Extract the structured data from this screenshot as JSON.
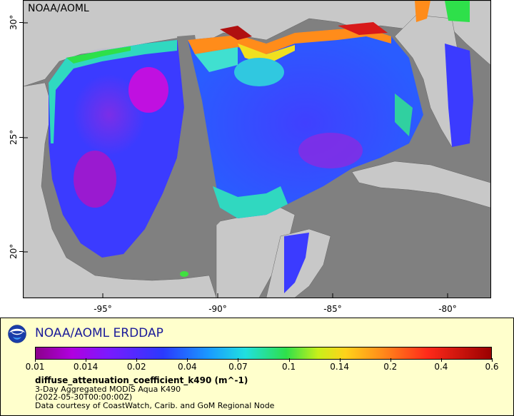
{
  "map": {
    "title": "NOAA/AOML",
    "lat_labels": [
      "30°",
      "25°",
      "20°"
    ],
    "lon_labels": [
      "-95°",
      "-90°",
      "-85°",
      "-80°"
    ],
    "land_color": "#c8c8c8",
    "nodata_color": "#808080"
  },
  "legend": {
    "header": "NOAA/AOML ERDDAP",
    "colorbar_labels": [
      "0.01",
      "0.014",
      "0.02",
      "0.04",
      "0.07",
      "0.1",
      "0.14",
      "0.2",
      "0.4",
      "0.6"
    ],
    "variable": "diffuse_attenuation_coefficient_k490 (m^-1)",
    "dataset": "3-Day Aggregated MODIS Aqua K490",
    "time": "(2022-05-30T00:00:00Z)",
    "credit": "Data courtesy of CoastWatch, Carib. and GoM Regional Node",
    "logo": "noaa-logo-icon"
  }
}
